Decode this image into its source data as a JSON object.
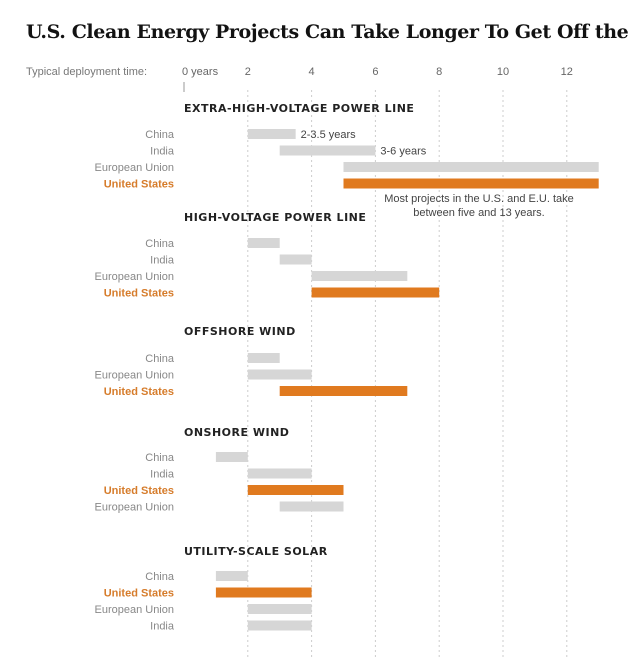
{
  "title": "U.S. Clean Energy Projects Can Take Longer To Get Off the Ground",
  "chart_data": {
    "type": "bar",
    "orientation": "horizontal-range",
    "xlabel": "Typical deployment time:",
    "x_unit": "years",
    "xlim": [
      0,
      13
    ],
    "ticks": [
      {
        "value": 0,
        "label": "0 years"
      },
      {
        "value": 2,
        "label": "2"
      },
      {
        "value": 4,
        "label": "4"
      },
      {
        "value": 6,
        "label": "6"
      },
      {
        "value": 8,
        "label": "8"
      },
      {
        "value": 10,
        "label": "10"
      },
      {
        "value": 12,
        "label": "12"
      }
    ],
    "grid": true,
    "colors": {
      "highlight": "#e07a1f",
      "default": "#d6d6d6",
      "highlight_label": "#d67c2b"
    },
    "sections": [
      {
        "title": "EXTRA-HIGH-VOLTAGE POWER LINE",
        "rows": [
          {
            "label": "China",
            "start": 2,
            "end": 3.5,
            "highlight": false,
            "value_label": "2-3.5 years"
          },
          {
            "label": "India",
            "start": 3,
            "end": 6,
            "highlight": false,
            "value_label": "3-6 years"
          },
          {
            "label": "European Union",
            "start": 5,
            "end": 13,
            "highlight": false
          },
          {
            "label": "United States",
            "start": 5,
            "end": 13,
            "highlight": true
          }
        ],
        "note": [
          "Most projects in the U.S. and E.U. take",
          "between five and 13 years."
        ]
      },
      {
        "title": "HIGH-VOLTAGE POWER LINE",
        "rows": [
          {
            "label": "China",
            "start": 2,
            "end": 3,
            "highlight": false
          },
          {
            "label": "India",
            "start": 3,
            "end": 4,
            "highlight": false
          },
          {
            "label": "European Union",
            "start": 4,
            "end": 7,
            "highlight": false
          },
          {
            "label": "United States",
            "start": 4,
            "end": 8,
            "highlight": true
          }
        ]
      },
      {
        "title": "OFFSHORE WIND",
        "rows": [
          {
            "label": "China",
            "start": 2,
            "end": 3,
            "highlight": false
          },
          {
            "label": "European Union",
            "start": 2,
            "end": 4,
            "highlight": false
          },
          {
            "label": "United States",
            "start": 3,
            "end": 7,
            "highlight": true
          }
        ]
      },
      {
        "title": "ONSHORE WIND",
        "rows": [
          {
            "label": "China",
            "start": 1,
            "end": 2,
            "highlight": false
          },
          {
            "label": "India",
            "start": 2,
            "end": 4,
            "highlight": false
          },
          {
            "label": "United States",
            "start": 2,
            "end": 5,
            "highlight": true
          },
          {
            "label": "European Union",
            "start": 3,
            "end": 5,
            "highlight": false
          }
        ]
      },
      {
        "title": "UTILITY-SCALE SOLAR",
        "rows": [
          {
            "label": "China",
            "start": 1,
            "end": 2,
            "highlight": false
          },
          {
            "label": "United States",
            "start": 1,
            "end": 4,
            "highlight": true
          },
          {
            "label": "European Union",
            "start": 2,
            "end": 4,
            "highlight": false
          },
          {
            "label": "India",
            "start": 2,
            "end": 4,
            "highlight": false
          }
        ]
      }
    ]
  }
}
